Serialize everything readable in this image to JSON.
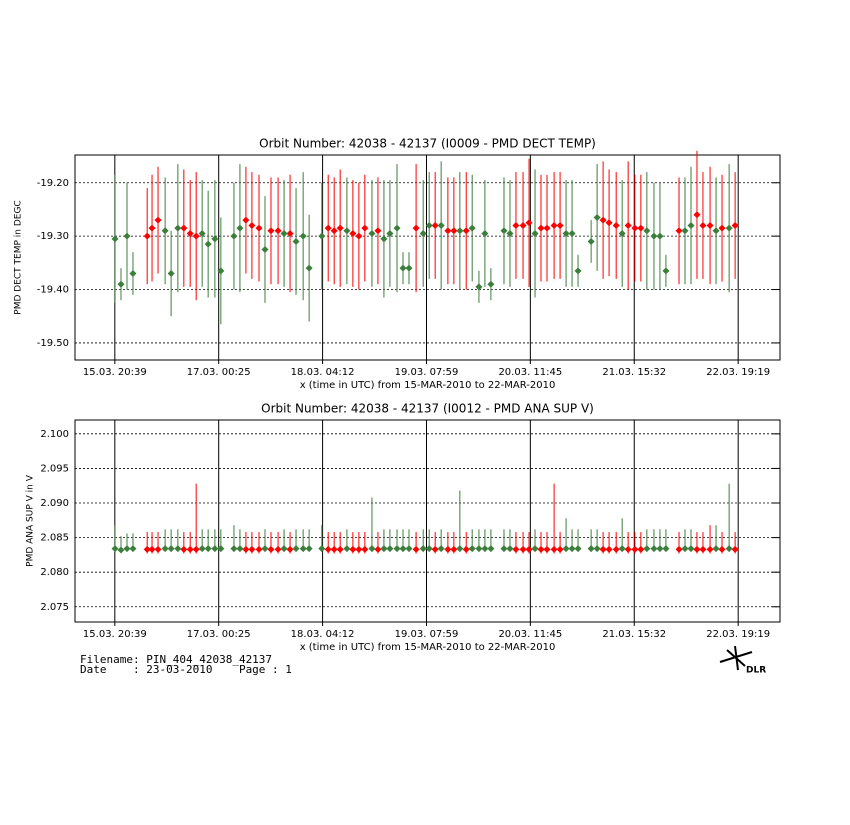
{
  "chart_data": [
    {
      "type": "errorbar",
      "title": "Orbit Number: 42038 - 42137 (I0009 - PMD DECT TEMP)",
      "y_label": "PMD DECT TEMP in DEGC",
      "x_label": "x (time in UTC) from 15-MAR-2010 to 22-MAR-2010",
      "xlim": [
        10,
        198.5
      ],
      "xticks": [
        {
          "value": 20.65,
          "label": "15.03. 20:39"
        },
        {
          "value": 48.42,
          "label": "17.03. 00:25"
        },
        {
          "value": 76.2,
          "label": "18.03. 04:12"
        },
        {
          "value": 103.98,
          "label": "19.03. 07:59"
        },
        {
          "value": 131.75,
          "label": "20.03. 11:45"
        },
        {
          "value": 159.53,
          "label": "21.03. 15:32"
        },
        {
          "value": 187.32,
          "label": "22.03. 19:19"
        }
      ],
      "ylim": [
        -19.532,
        -19.148
      ],
      "yticks": [
        {
          "value": -19.5,
          "label": "-19.50"
        },
        {
          "value": -19.4,
          "label": "-19.40"
        },
        {
          "value": -19.3,
          "label": "-19.30"
        },
        {
          "value": -19.2,
          "label": "-19.20"
        }
      ],
      "grid": true,
      "series": [
        {
          "color": "#ff0000",
          "x": [
            29.3,
            30.6,
            32.2,
            39.1,
            40.8,
            42.4,
            55.7,
            57.3,
            59.2,
            62.4,
            64.3,
            67.5,
            77.7,
            79.3,
            80.9,
            84.3,
            85.9,
            87.5,
            91.0,
            101.2,
            106.3,
            109.7,
            111.3,
            114.6,
            127.9,
            129.8,
            131.4,
            134.6,
            136.2,
            138.1,
            139.7,
            151.2,
            152.8,
            154.7,
            157.9,
            159.7,
            161.3,
            171.5,
            176.3,
            177.9,
            179.8,
            183.0,
            186.5
          ],
          "values": [
            -19.3,
            -19.285,
            -19.27,
            -19.285,
            -19.295,
            -19.3,
            -19.27,
            -19.28,
            -19.285,
            -19.29,
            -19.29,
            -19.295,
            -19.285,
            -19.29,
            -19.285,
            -19.295,
            -19.3,
            -19.285,
            -19.29,
            -19.285,
            -19.28,
            -19.29,
            -19.29,
            -19.29,
            -19.28,
            -19.28,
            -19.275,
            -19.285,
            -19.285,
            -19.28,
            -19.28,
            -19.27,
            -19.275,
            -19.28,
            -19.28,
            -19.285,
            -19.285,
            -19.29,
            -19.26,
            -19.28,
            -19.28,
            -19.285,
            -19.28
          ],
          "errors": [
            0.09,
            0.1,
            0.1,
            0.11,
            0.1,
            0.12,
            0.1,
            0.1,
            0.1,
            0.1,
            0.1,
            0.11,
            0.1,
            0.1,
            0.11,
            0.1,
            0.1,
            0.1,
            0.1,
            0.12,
            0.1,
            0.1,
            0.1,
            0.11,
            0.1,
            0.1,
            0.12,
            0.1,
            0.1,
            0.1,
            0.1,
            0.11,
            0.1,
            0.1,
            0.12,
            0.1,
            0.1,
            0.1,
            0.12,
            0.1,
            0.11,
            0.1,
            0.1
          ]
        },
        {
          "color": "#3c7f3c",
          "x": [
            20.7,
            22.3,
            23.9,
            25.5,
            34.1,
            35.7,
            37.5,
            44.0,
            45.6,
            47.4,
            49.0,
            52.5,
            54.1,
            60.8,
            65.9,
            69.1,
            71.0,
            72.6,
            76.0,
            82.7,
            89.4,
            92.6,
            94.2,
            96.1,
            97.7,
            99.3,
            103.1,
            104.7,
            107.9,
            112.9,
            116.2,
            118.0,
            119.6,
            121.2,
            124.7,
            126.3,
            133.0,
            141.3,
            142.9,
            144.5,
            148.0,
            149.6,
            156.3,
            162.9,
            164.8,
            166.4,
            168.0,
            173.1,
            174.7,
            181.4,
            184.9
          ],
          "values": [
            -19.305,
            -19.39,
            -19.3,
            -19.37,
            -19.29,
            -19.37,
            -19.285,
            -19.295,
            -19.315,
            -19.305,
            -19.365,
            -19.3,
            -19.285,
            -19.325,
            -19.295,
            -19.31,
            -19.3,
            -19.36,
            -19.3,
            -19.29,
            -19.295,
            -19.305,
            -19.295,
            -19.285,
            -19.36,
            -19.36,
            -19.295,
            -19.28,
            -19.28,
            -19.29,
            -19.285,
            -19.395,
            -19.295,
            -19.39,
            -19.29,
            -19.295,
            -19.295,
            -19.295,
            -19.295,
            -19.365,
            -19.31,
            -19.265,
            -19.295,
            -19.29,
            -19.3,
            -19.3,
            -19.365,
            -19.29,
            -19.28,
            -19.29,
            -19.285
          ],
          "errors": [
            0.12,
            0.03,
            0.1,
            0.04,
            0.1,
            0.08,
            0.12,
            0.1,
            0.1,
            0.11,
            0.1,
            0.1,
            0.12,
            0.1,
            0.1,
            0.1,
            0.12,
            0.1,
            0.1,
            0.1,
            0.1,
            0.11,
            0.1,
            0.12,
            0.03,
            0.03,
            0.1,
            0.1,
            0.12,
            0.11,
            0.1,
            0.03,
            0.1,
            0.03,
            0.1,
            0.1,
            0.12,
            0.1,
            0.1,
            0.03,
            0.04,
            0.1,
            0.1,
            0.11,
            0.1,
            0.1,
            0.03,
            0.1,
            0.11,
            0.1,
            0.12
          ]
        }
      ]
    },
    {
      "type": "rangebar",
      "title": "Orbit Number: 42038 - 42137 (I0012 - PMD ANA SUP V)",
      "y_label": "PMD ANA SUP V in V",
      "x_label": "x (time in UTC) from 15-MAR-2010 to 22-MAR-2010",
      "xlim": [
        10,
        198.5
      ],
      "xticks": [
        {
          "value": 20.65,
          "label": "15.03. 20:39"
        },
        {
          "value": 48.42,
          "label": "17.03. 00:25"
        },
        {
          "value": 76.2,
          "label": "18.03. 04:12"
        },
        {
          "value": 103.98,
          "label": "19.03. 07:59"
        },
        {
          "value": 131.75,
          "label": "20.03. 11:45"
        },
        {
          "value": 159.53,
          "label": "21.03. 15:32"
        },
        {
          "value": 187.32,
          "label": "22.03. 19:19"
        }
      ],
      "ylim": [
        2.0728,
        2.102
      ],
      "yticks": [
        2.075,
        {
          "value": 2.08,
          "label": "2.080"
        },
        2.085,
        {
          "value": 2.09,
          "label": "2.090"
        },
        2.095,
        {
          "value": 2.1,
          "label": "2.100"
        }
      ],
      "grid": true,
      "series": [
        {
          "color": "#ff0000",
          "x": [
            29.3,
            30.6,
            32.2,
            39.1,
            40.8,
            42.4,
            55.7,
            57.3,
            59.2,
            62.4,
            64.3,
            67.5,
            77.7,
            79.3,
            80.9,
            84.3,
            85.9,
            87.5,
            91.0,
            101.2,
            106.3,
            109.7,
            111.3,
            114.6,
            127.9,
            129.8,
            131.4,
            134.6,
            136.2,
            138.1,
            139.7,
            151.2,
            152.8,
            154.7,
            157.9,
            159.7,
            161.3,
            171.5,
            176.3,
            177.9,
            179.8,
            183.0,
            186.5
          ],
          "values": [
            2.0833,
            2.0833,
            2.0833,
            2.0833,
            2.0833,
            2.0833,
            2.0833,
            2.0833,
            2.0833,
            2.0833,
            2.0833,
            2.0833,
            2.0833,
            2.0833,
            2.0833,
            2.0833,
            2.0833,
            2.0833,
            2.0833,
            2.0833,
            2.0833,
            2.0833,
            2.0833,
            2.0833,
            2.0833,
            2.0833,
            2.0833,
            2.0833,
            2.0833,
            2.0833,
            2.0833,
            2.0833,
            2.0833,
            2.0833,
            2.0833,
            2.0833,
            2.0833,
            2.0833,
            2.0833,
            2.0833,
            2.0833,
            2.0833,
            2.0833
          ],
          "low": [
            2.0827,
            2.0827,
            2.0827,
            2.0827,
            2.0827,
            2.0827,
            2.0827,
            2.0827,
            2.0827,
            2.0827,
            2.0827,
            2.0827,
            2.0827,
            2.0827,
            2.0827,
            2.0827,
            2.0827,
            2.0827,
            2.0827,
            2.0827,
            2.0827,
            2.0827,
            2.0827,
            2.0827,
            2.0827,
            2.0827,
            2.0827,
            2.0827,
            2.0827,
            2.0827,
            2.0827,
            2.0827,
            2.0827,
            2.0827,
            2.0827,
            2.0827,
            2.0827,
            2.0827,
            2.0827,
            2.0827,
            2.0827,
            2.0827,
            2.0827
          ],
          "high": [
            2.0858,
            2.0858,
            2.0858,
            2.0858,
            2.0858,
            2.0928,
            2.0858,
            2.0858,
            2.0858,
            2.0858,
            2.0858,
            2.0858,
            2.0858,
            2.0858,
            2.0858,
            2.0858,
            2.0858,
            2.0858,
            2.0858,
            2.0858,
            2.0858,
            2.0858,
            2.0858,
            2.0858,
            2.0858,
            2.0858,
            2.0858,
            2.0858,
            2.0858,
            2.0928,
            2.0858,
            2.0858,
            2.0858,
            2.0858,
            2.0858,
            2.0858,
            2.0858,
            2.0858,
            2.0858,
            2.0858,
            2.0868,
            2.0858,
            2.0858
          ]
        },
        {
          "color": "#3c7f3c",
          "x": [
            20.7,
            22.3,
            23.9,
            25.5,
            34.1,
            35.7,
            37.5,
            44.0,
            45.6,
            47.4,
            49.0,
            52.5,
            54.1,
            60.8,
            65.9,
            69.1,
            71.0,
            72.6,
            76.0,
            82.7,
            89.4,
            92.6,
            94.2,
            96.1,
            97.7,
            99.3,
            103.1,
            104.7,
            107.9,
            112.9,
            116.2,
            118.0,
            119.6,
            121.2,
            124.7,
            126.3,
            133.0,
            141.3,
            142.9,
            144.5,
            148.0,
            149.6,
            156.3,
            162.9,
            164.8,
            166.4,
            168.0,
            173.1,
            174.7,
            181.4,
            184.9
          ],
          "values": [
            2.0834,
            2.0832,
            2.0834,
            2.0834,
            2.0834,
            2.0834,
            2.0834,
            2.0834,
            2.0834,
            2.0834,
            2.0834,
            2.0834,
            2.0834,
            2.0834,
            2.0834,
            2.0834,
            2.0834,
            2.0834,
            2.0834,
            2.0834,
            2.0834,
            2.0834,
            2.0834,
            2.0834,
            2.0834,
            2.0834,
            2.0834,
            2.0834,
            2.0834,
            2.0834,
            2.0834,
            2.0834,
            2.0834,
            2.0834,
            2.0834,
            2.0834,
            2.0834,
            2.0834,
            2.0834,
            2.0834,
            2.0834,
            2.0834,
            2.0834,
            2.0834,
            2.0834,
            2.0834,
            2.0834,
            2.0834,
            2.0834,
            2.0834,
            2.0834
          ],
          "low": [
            2.083,
            2.083,
            2.083,
            2.083,
            2.083,
            2.083,
            2.083,
            2.083,
            2.083,
            2.083,
            2.083,
            2.083,
            2.083,
            2.083,
            2.083,
            2.083,
            2.083,
            2.083,
            2.083,
            2.083,
            2.083,
            2.083,
            2.083,
            2.083,
            2.083,
            2.083,
            2.083,
            2.083,
            2.083,
            2.083,
            2.083,
            2.083,
            2.083,
            2.083,
            2.083,
            2.083,
            2.083,
            2.083,
            2.083,
            2.083,
            2.083,
            2.083,
            2.083,
            2.083,
            2.083,
            2.083,
            2.083,
            2.083,
            2.083,
            2.083,
            2.083
          ],
          "high": [
            2.0868,
            2.0852,
            2.0856,
            2.0856,
            2.0862,
            2.0862,
            2.0862,
            2.0862,
            2.0862,
            2.0862,
            2.0862,
            2.0868,
            2.0862,
            2.0862,
            2.0862,
            2.0862,
            2.0862,
            2.0862,
            2.0868,
            2.0862,
            2.0908,
            2.0862,
            2.0862,
            2.0862,
            2.0862,
            2.0862,
            2.0862,
            2.0862,
            2.0862,
            2.0918,
            2.0862,
            2.0862,
            2.0862,
            2.0862,
            2.0862,
            2.0862,
            2.0862,
            2.0878,
            2.0862,
            2.0862,
            2.0862,
            2.0862,
            2.0878,
            2.0862,
            2.0862,
            2.0862,
            2.0862,
            2.0862,
            2.0862,
            2.0868,
            2.0928
          ]
        }
      ]
    }
  ],
  "footer": {
    "filename": "Filename: PIN_404_42038_42137",
    "date": "Date    : 23-03-2010    Page : 1",
    "logo": "DLR"
  }
}
